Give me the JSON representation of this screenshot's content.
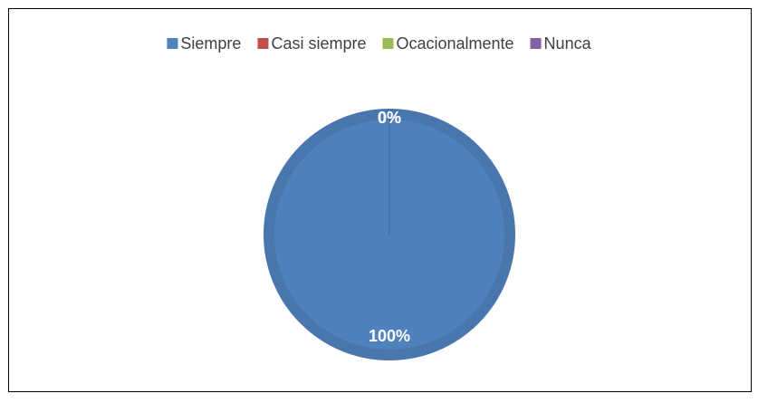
{
  "chart_data": {
    "type": "pie",
    "categories": [
      "Siempre",
      "Casi siempre",
      "Ocacionalmente",
      "Nunca"
    ],
    "values": [
      100,
      0,
      0,
      0
    ],
    "value_labels": [
      "100%",
      "0%",
      "0%",
      "0%"
    ],
    "colors": [
      "#4f81bd",
      "#c0504d",
      "#9bbb59",
      "#8064a2"
    ],
    "legend": "top"
  }
}
